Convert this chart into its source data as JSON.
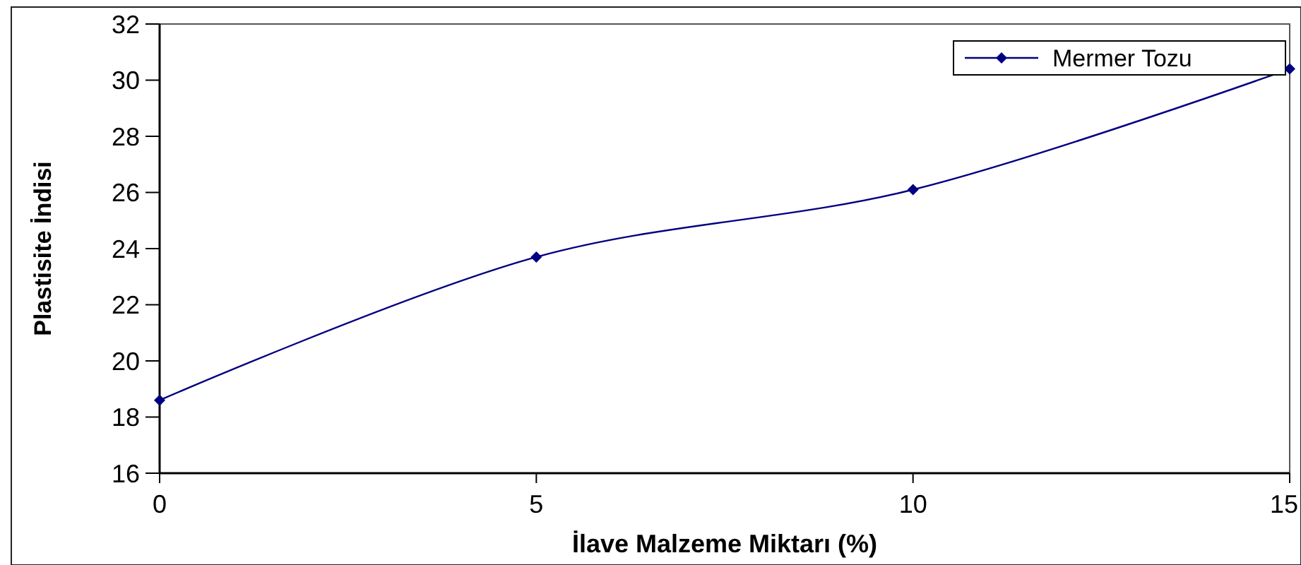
{
  "chart_data": {
    "type": "line",
    "xlabel": "İlave Malzeme Miktarı (%)",
    "ylabel": "Plastisite İndisi",
    "x": [
      0,
      5,
      10,
      15
    ],
    "series": [
      {
        "name": "Mermer Tozu",
        "color": "#000080",
        "values": [
          18.6,
          23.7,
          26.1,
          30.4
        ]
      }
    ],
    "xlim": [
      0,
      15
    ],
    "xticks": [
      0,
      5,
      10,
      15
    ],
    "ylim": [
      16,
      32
    ],
    "yticks": [
      16,
      18,
      20,
      22,
      24,
      26,
      28,
      30,
      32
    ],
    "grid": false,
    "legend": "top right",
    "marker": "diamond",
    "line_style": "solid"
  }
}
